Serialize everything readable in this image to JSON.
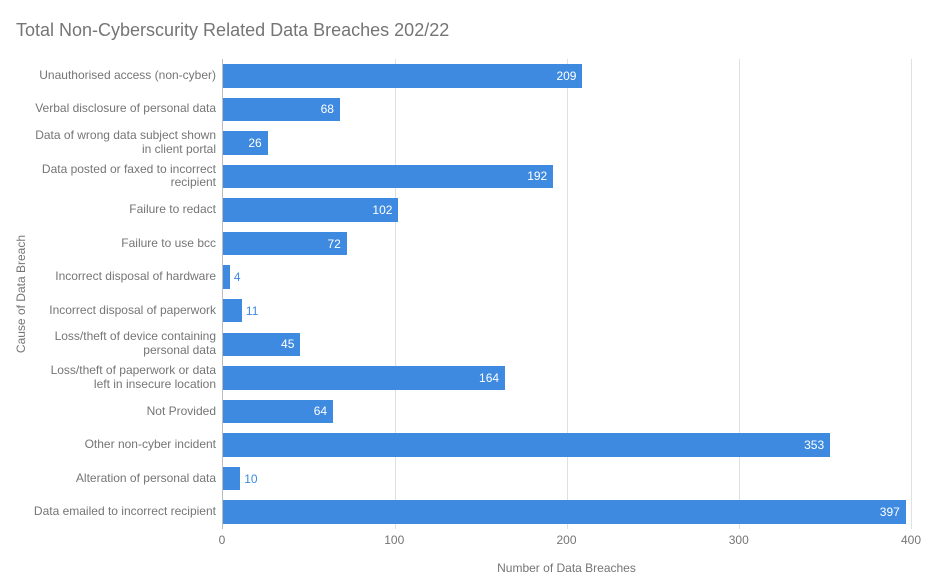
{
  "chart": {
    "type": "bar-horizontal",
    "title": "Total Non-Cyberscurity Related Data Breaches 202/22",
    "title_color": "#757575",
    "title_fontsize": 18,
    "background_color": "#ffffff",
    "bar_color": "#3e8ae0",
    "grid_color": "#e0e0e0",
    "axis_line_color": "#bdbdbd",
    "label_color": "#757575",
    "value_label_color": "#ffffff",
    "label_fontsize": 12,
    "y_axis_title": "Cause of Data Breach",
    "x_axis_title": "Number of Data Breaches",
    "xlim": [
      0,
      400
    ],
    "xtick_step": 100,
    "xticks": [
      0,
      100,
      200,
      300,
      400
    ],
    "bar_height_ratio": 0.7,
    "categories": [
      "Unauthorised access (non-cyber)",
      "Verbal disclosure of personal data",
      "Data of wrong data subject shown in client portal",
      "Data posted or faxed to incorrect recipient",
      "Failure to redact",
      "Failure to use bcc",
      "Incorrect disposal of hardware",
      "Incorrect disposal of paperwork",
      "Loss/theft of device containing personal data",
      "Loss/theft of paperwork or data left in insecure location",
      "Not Provided",
      "Other non-cyber incident",
      "Alteration of personal data",
      "Data emailed to incorrect recipient"
    ],
    "values": [
      209,
      68,
      26,
      192,
      102,
      72,
      4,
      11,
      45,
      164,
      64,
      353,
      10,
      397
    ]
  }
}
